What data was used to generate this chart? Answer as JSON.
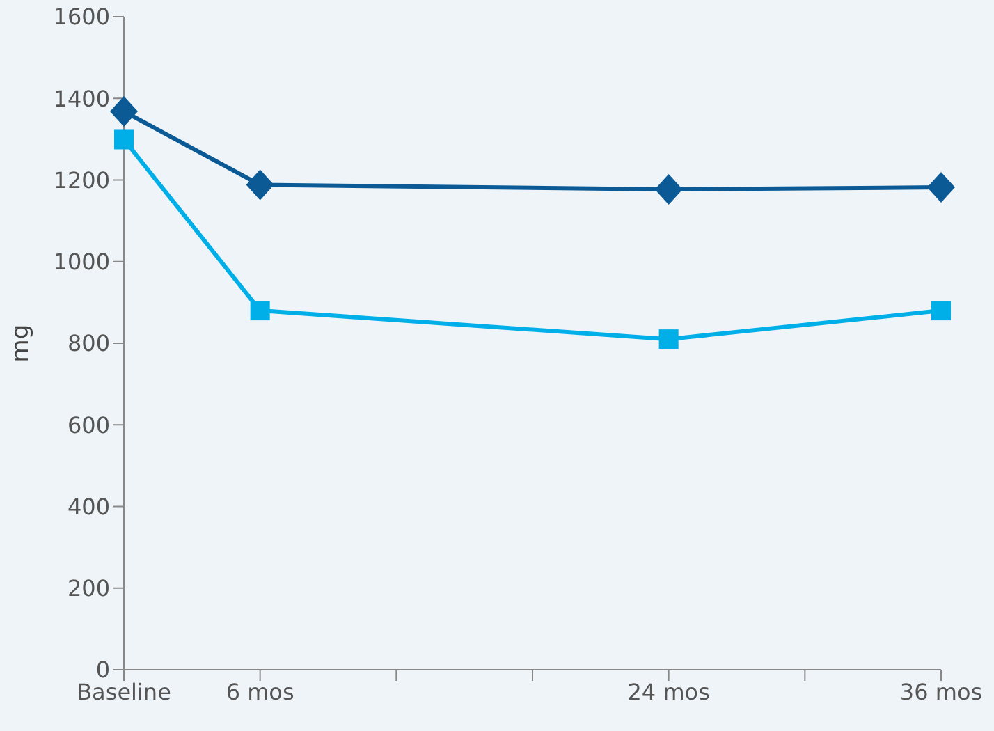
{
  "chart_data": {
    "type": "line",
    "ylabel": "mg",
    "x": [
      0,
      6,
      24,
      36
    ],
    "series": [
      {
        "color": "#0b5a96",
        "marker": "diamond",
        "values": [
          1368,
          1188,
          1177,
          1182
        ]
      },
      {
        "color": "#00aee8",
        "marker": "square",
        "values": [
          1299,
          880,
          810,
          880
        ]
      }
    ],
    "xlim": [
      0,
      36
    ],
    "xticks": [
      {
        "value": 0,
        "label": "Baseline"
      },
      {
        "value": 6,
        "label": "6 mos"
      },
      {
        "value": 12,
        "label": null
      },
      {
        "value": 18,
        "label": null
      },
      {
        "value": 24,
        "label": "24 mos"
      },
      {
        "value": 30,
        "label": null
      },
      {
        "value": 36,
        "label": "36 mos"
      }
    ],
    "ylim": [
      0,
      1600
    ],
    "yticks": [
      0,
      200,
      400,
      600,
      800,
      1000,
      1200,
      1400,
      1600
    ],
    "grid": false,
    "legend": false,
    "line_style": "solid"
  }
}
